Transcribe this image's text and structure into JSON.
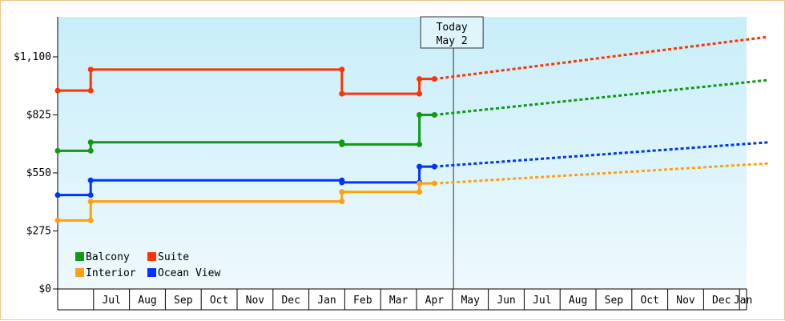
{
  "chart_data": {
    "type": "line",
    "title": "",
    "xlabel": "",
    "ylabel": "",
    "ylim": [
      0,
      1100
    ],
    "yticks": [
      {
        "value": 0,
        "label": "$0"
      },
      {
        "value": 275,
        "label": "$275"
      },
      {
        "value": 550,
        "label": "$550"
      },
      {
        "value": 825,
        "label": "$825"
      },
      {
        "value": 1100,
        "label": "$1,100"
      }
    ],
    "xlim": [
      "2023-06-01",
      "2024-01-31"
    ],
    "month_labels": [
      "",
      "Jul",
      "Aug",
      "Sep",
      "Oct",
      "Nov",
      "Dec",
      "Jan",
      "Feb",
      "Mar",
      "Apr",
      "May",
      "Jun",
      "Jul",
      "Aug",
      "Sep",
      "Oct",
      "Nov",
      "Dec",
      "Jan"
    ],
    "today": {
      "line1": "Today",
      "line2": "May 2",
      "month_index": 11.03
    },
    "grid": false,
    "legend_position": "bottom-left",
    "colors": {
      "background_top": "#c8eefa",
      "background_bottom": "#eef9fd",
      "frame": "#f2c48a"
    },
    "series": [
      {
        "name": "Suite",
        "color": "#ff3300",
        "points": [
          [
            0,
            940
          ],
          [
            0.92,
            940
          ],
          [
            0.92,
            1040
          ],
          [
            7.92,
            1040
          ],
          [
            7.92,
            925
          ],
          [
            10.08,
            925
          ],
          [
            10.08,
            995
          ],
          [
            10.5,
            995
          ]
        ],
        "forecast": [
          [
            10.5,
            995
          ],
          [
            19.8,
            1195
          ]
        ]
      },
      {
        "name": "Balcony",
        "color": "#129912",
        "points": [
          [
            0,
            655
          ],
          [
            0.92,
            655
          ],
          [
            0.92,
            695
          ],
          [
            7.92,
            695
          ],
          [
            7.92,
            685
          ],
          [
            10.08,
            685
          ],
          [
            10.08,
            825
          ],
          [
            10.5,
            825
          ]
        ],
        "forecast": [
          [
            10.5,
            825
          ],
          [
            19.8,
            990
          ]
        ]
      },
      {
        "name": "Ocean View",
        "color": "#0033ff",
        "points": [
          [
            0,
            445
          ],
          [
            0.92,
            445
          ],
          [
            0.92,
            515
          ],
          [
            7.92,
            515
          ],
          [
            7.92,
            505
          ],
          [
            10.08,
            505
          ],
          [
            10.08,
            580
          ],
          [
            10.5,
            580
          ]
        ],
        "forecast": [
          [
            10.5,
            580
          ],
          [
            19.8,
            695
          ]
        ]
      },
      {
        "name": "Interior",
        "color": "#ffa011",
        "points": [
          [
            0,
            325
          ],
          [
            0.92,
            325
          ],
          [
            0.92,
            415
          ],
          [
            7.92,
            415
          ],
          [
            7.92,
            460
          ],
          [
            10.08,
            460
          ],
          [
            10.08,
            500
          ],
          [
            10.5,
            500
          ]
        ],
        "forecast": [
          [
            10.5,
            500
          ],
          [
            19.8,
            595
          ]
        ]
      }
    ],
    "legend": [
      {
        "name": "Balcony",
        "color": "#129912"
      },
      {
        "name": "Suite",
        "color": "#ff3300"
      },
      {
        "name": "Interior",
        "color": "#ffa011"
      },
      {
        "name": "Ocean View",
        "color": "#0033ff"
      }
    ]
  }
}
